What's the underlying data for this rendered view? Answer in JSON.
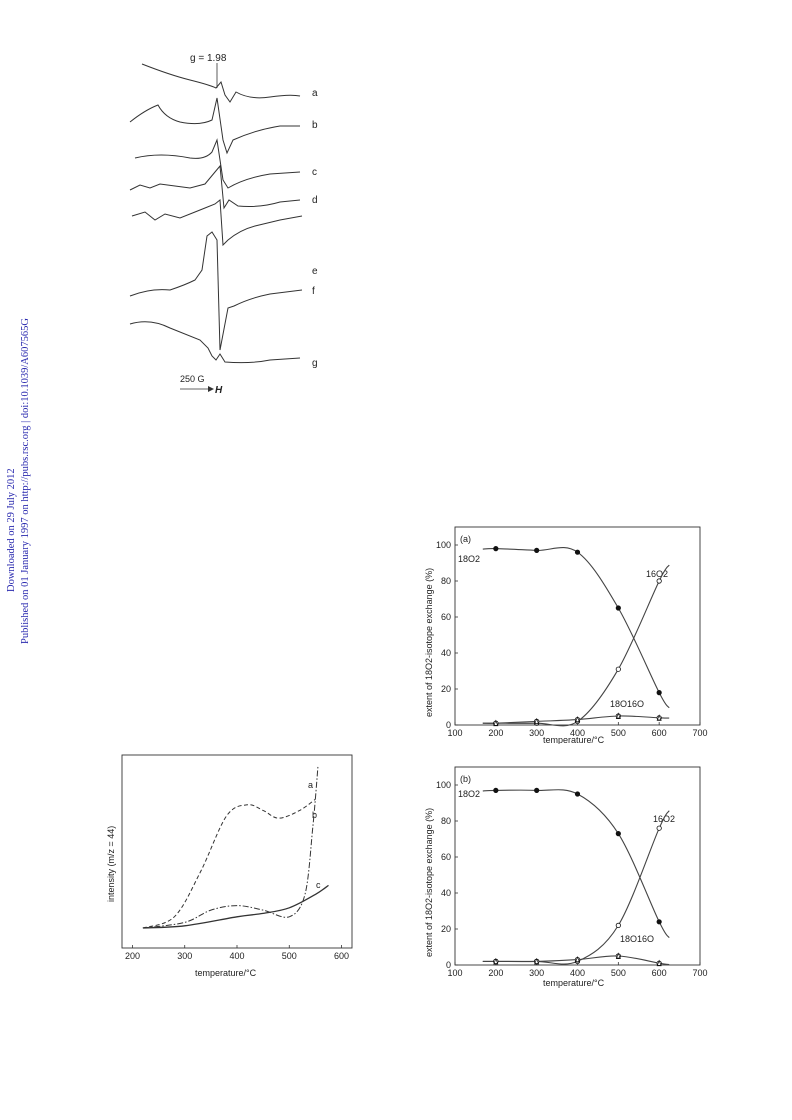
{
  "sidebar": {
    "downloaded": "Downloaded on 29 July 2012",
    "published": "Published on 01 January 1997 on http://pubs.rsc.org | doi:10.1039/A607565G"
  },
  "epr": {
    "g_label": "g = 1.98",
    "trace_labels": [
      "a",
      "b",
      "c",
      "d",
      "e",
      "f",
      "g"
    ],
    "scale_label": "250 G",
    "field_label": "H"
  },
  "tpd": {
    "ylabel": "intensity (m/z = 44)",
    "xlabel": "temperature/°C",
    "xticks": [
      "200",
      "300",
      "400",
      "500",
      "600"
    ],
    "curve_labels": [
      "a",
      "b",
      "c"
    ]
  },
  "iso_a": {
    "panel": "(a)",
    "ylabel": "extent of 18O2-isotope exchange (%)",
    "xlabel": "temperature/°C",
    "label_18O2": "18O2",
    "label_16O2": "16O2",
    "label_18O16O": "18O16O"
  },
  "iso_b": {
    "panel": "(b)",
    "ylabel": "extent of 18O2-isotope exchange (%)",
    "xlabel": "temperature/°C",
    "label_18O2": "18O2",
    "label_16O2": "16O2",
    "label_18O16O": "18O16O"
  },
  "chart_data": [
    {
      "type": "line",
      "panel": "(a)",
      "xlabel": "temperature/°C",
      "ylabel": "extent of 18O2-isotope exchange (%)",
      "xlim": [
        100,
        700
      ],
      "ylim": [
        0,
        110
      ],
      "xticks": [
        100,
        200,
        300,
        400,
        500,
        600,
        700
      ],
      "yticks": [
        0,
        20,
        40,
        60,
        80,
        100
      ],
      "series": [
        {
          "name": "18O2",
          "x": [
            200,
            300,
            400,
            500,
            600
          ],
          "values": [
            98,
            97,
            96,
            65,
            18
          ]
        },
        {
          "name": "16O2",
          "x": [
            200,
            300,
            400,
            500,
            600
          ],
          "values": [
            1,
            1,
            2,
            31,
            80
          ]
        },
        {
          "name": "18O16O",
          "x": [
            200,
            300,
            400,
            500,
            600
          ],
          "values": [
            1,
            2,
            3,
            5,
            4
          ]
        }
      ]
    },
    {
      "type": "line",
      "panel": "(b)",
      "xlabel": "temperature/°C",
      "ylabel": "extent of 18O2-isotope exchange (%)",
      "xlim": [
        100,
        700
      ],
      "ylim": [
        0,
        110
      ],
      "xticks": [
        100,
        200,
        300,
        400,
        500,
        600,
        700
      ],
      "yticks": [
        0,
        20,
        40,
        60,
        80,
        100
      ],
      "series": [
        {
          "name": "18O2",
          "x": [
            200,
            300,
            400,
            500,
            600
          ],
          "values": [
            97,
            97,
            95,
            73,
            24
          ]
        },
        {
          "name": "16O2",
          "x": [
            200,
            300,
            400,
            500,
            600
          ],
          "values": [
            2,
            2,
            2,
            22,
            76
          ]
        },
        {
          "name": "18O16O",
          "x": [
            200,
            300,
            400,
            500,
            600
          ],
          "values": [
            2,
            2,
            3,
            5,
            1
          ]
        }
      ]
    },
    {
      "type": "line",
      "xlabel": "temperature/°C",
      "ylabel": "intensity (m/z = 44)",
      "xlim": [
        180,
        620
      ],
      "xticks": [
        200,
        300,
        400,
        500,
        600
      ],
      "series": [
        {
          "name": "a",
          "x": [
            220,
            300,
            350,
            400,
            450,
            500,
            530,
            545,
            555
          ],
          "values": [
            0.0,
            0.05,
            0.16,
            0.2,
            0.16,
            0.1,
            0.3,
            0.9,
            1.45
          ]
        },
        {
          "name": "b",
          "x": [
            220,
            280,
            330,
            380,
            420,
            450,
            480,
            520,
            550
          ],
          "values": [
            0.0,
            0.1,
            0.5,
            1.0,
            1.1,
            1.05,
            0.98,
            1.05,
            1.15
          ]
        },
        {
          "name": "c",
          "x": [
            220,
            300,
            400,
            450,
            500,
            550,
            575
          ],
          "values": [
            0.0,
            0.02,
            0.1,
            0.13,
            0.18,
            0.3,
            0.38
          ]
        }
      ]
    }
  ]
}
